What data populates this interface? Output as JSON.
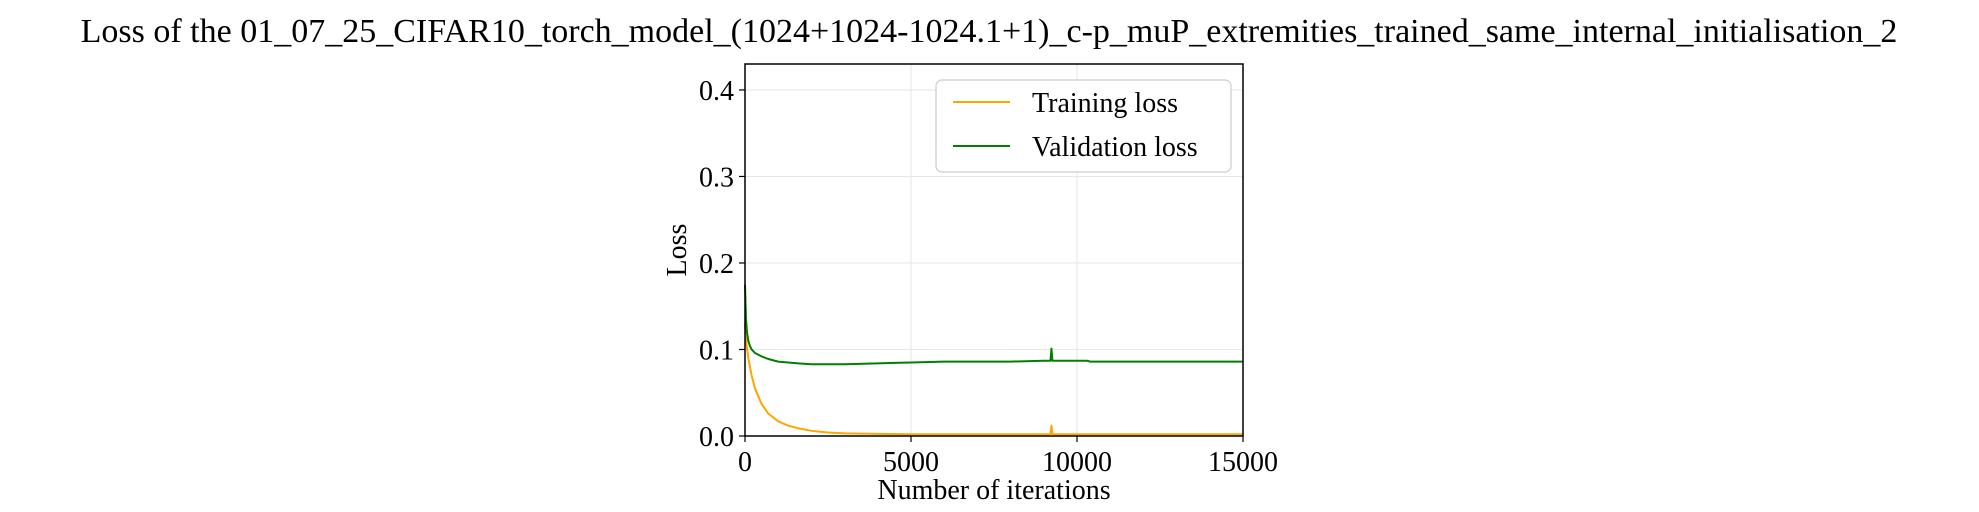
{
  "chart_data": {
    "type": "line",
    "title": "Loss of the 01_07_25_CIFAR10_torch_model_(1024+1024-1024.1+1)_c-p_muP_extremities_trained_same_internal_initialisation_2",
    "xlabel": "Number of iterations",
    "ylabel": "Loss",
    "xlim": [
      0,
      15000
    ],
    "ylim": [
      0,
      0.43
    ],
    "xticks": [
      0,
      5000,
      10000,
      15000
    ],
    "yticks": [
      0.0,
      0.1,
      0.2,
      0.3,
      0.4
    ],
    "xtick_labels": [
      "0",
      "5000",
      "10000",
      "15000"
    ],
    "ytick_labels": [
      "0.0",
      "0.1",
      "0.2",
      "0.3",
      "0.4"
    ],
    "grid": true,
    "legend": "top-right",
    "series": [
      {
        "name": "Training loss",
        "color": "#FFA500",
        "x": [
          0,
          50,
          100,
          200,
          300,
          500,
          700,
          1000,
          1300,
          1600,
          2000,
          2500,
          3000,
          4000,
          5000,
          6000,
          7000,
          8000,
          9000,
          9200,
          9230,
          9260,
          9300,
          10000,
          11000,
          12000,
          13000,
          14000,
          15000
        ],
        "y": [
          0.13,
          0.105,
          0.09,
          0.07,
          0.055,
          0.037,
          0.026,
          0.017,
          0.012,
          0.009,
          0.006,
          0.004,
          0.003,
          0.0025,
          0.002,
          0.002,
          0.002,
          0.002,
          0.002,
          0.002,
          0.012,
          0.002,
          0.002,
          0.002,
          0.002,
          0.002,
          0.002,
          0.002,
          0.002
        ]
      },
      {
        "name": "Validation loss",
        "color": "#008000",
        "x": [
          0,
          30,
          60,
          100,
          150,
          200,
          300,
          500,
          700,
          1000,
          1300,
          1600,
          2000,
          3000,
          4000,
          5000,
          6000,
          7000,
          8000,
          9000,
          9200,
          9230,
          9260,
          9300,
          10000,
          10300,
          10400,
          11000,
          12000,
          13000,
          14000,
          15000
        ],
        "y": [
          0.175,
          0.135,
          0.12,
          0.11,
          0.104,
          0.1,
          0.096,
          0.092,
          0.089,
          0.086,
          0.085,
          0.084,
          0.083,
          0.083,
          0.084,
          0.085,
          0.086,
          0.086,
          0.086,
          0.087,
          0.087,
          0.101,
          0.087,
          0.087,
          0.087,
          0.087,
          0.086,
          0.086,
          0.086,
          0.086,
          0.086,
          0.086
        ]
      }
    ]
  }
}
